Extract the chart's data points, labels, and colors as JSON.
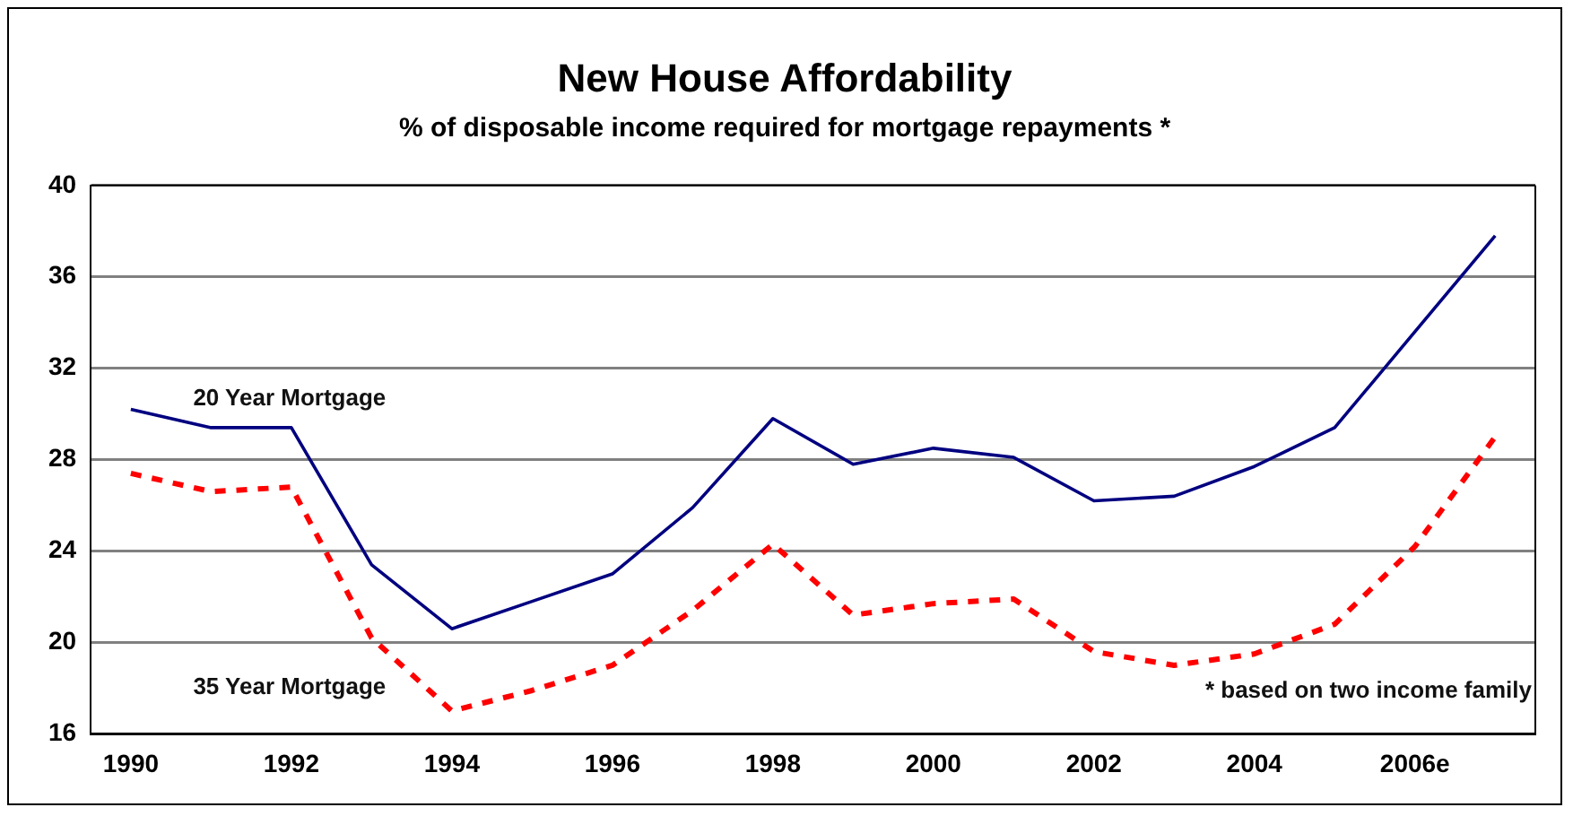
{
  "chart_data": {
    "type": "line",
    "title": "New House Affordability",
    "subtitle": "% of disposable income required for mortgage repayments *",
    "categories": [
      "1990",
      null,
      "1992",
      null,
      "1994",
      null,
      "1996",
      null,
      "1998",
      null,
      "2000",
      null,
      "2002",
      null,
      "2004",
      null,
      "2006e",
      null
    ],
    "series": [
      {
        "name": "20 Year Mortgage",
        "color": "#000080",
        "line_style": "solid",
        "values": [
          30.2,
          29.4,
          29.4,
          23.4,
          20.6,
          21.8,
          23.0,
          25.9,
          29.8,
          27.8,
          28.5,
          28.1,
          26.2,
          26.4,
          27.7,
          29.4,
          33.6,
          37.8
        ]
      },
      {
        "name": "35 Year Mortgage",
        "color": "#ff0000",
        "line_style": "dashed",
        "values": [
          27.4,
          26.6,
          26.8,
          20.2,
          17.0,
          17.9,
          19.0,
          21.4,
          24.3,
          21.2,
          21.7,
          21.9,
          19.6,
          19.0,
          19.5,
          20.8,
          24.2,
          29.0
        ]
      }
    ],
    "ylim": [
      16,
      40
    ],
    "yticks": [
      16,
      20,
      24,
      28,
      32,
      36,
      40
    ],
    "grid": "y",
    "legend": false,
    "marker": "none",
    "annotations": [
      "* based on two income family"
    ]
  }
}
